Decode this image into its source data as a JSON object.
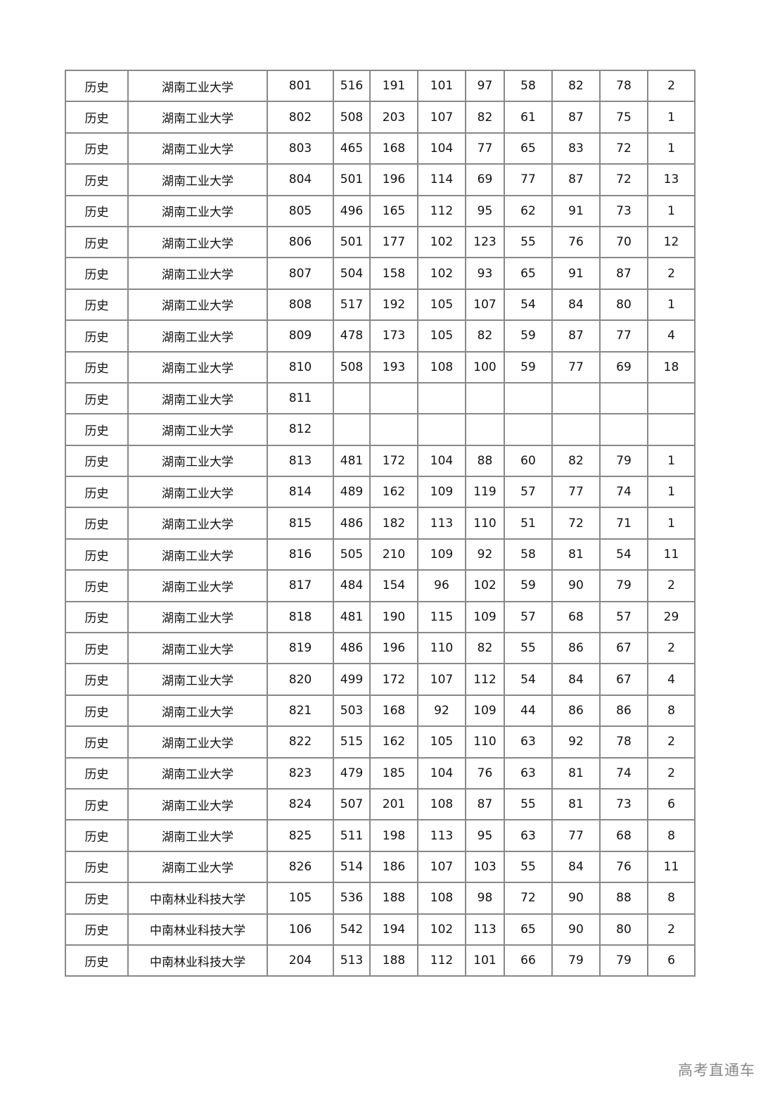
{
  "table": {
    "rows": [
      [
        "历史",
        "湖南工业大学",
        "801",
        "516",
        "191",
        "101",
        "97",
        "58",
        "82",
        "78",
        "2"
      ],
      [
        "历史",
        "湖南工业大学",
        "802",
        "508",
        "203",
        "107",
        "82",
        "61",
        "87",
        "75",
        "1"
      ],
      [
        "历史",
        "湖南工业大学",
        "803",
        "465",
        "168",
        "104",
        "77",
        "65",
        "83",
        "72",
        "1"
      ],
      [
        "历史",
        "湖南工业大学",
        "804",
        "501",
        "196",
        "114",
        "69",
        "77",
        "87",
        "72",
        "13"
      ],
      [
        "历史",
        "湖南工业大学",
        "805",
        "496",
        "165",
        "112",
        "95",
        "62",
        "91",
        "73",
        "1"
      ],
      [
        "历史",
        "湖南工业大学",
        "806",
        "501",
        "177",
        "102",
        "123",
        "55",
        "76",
        "70",
        "12"
      ],
      [
        "历史",
        "湖南工业大学",
        "807",
        "504",
        "158",
        "102",
        "93",
        "65",
        "91",
        "87",
        "2"
      ],
      [
        "历史",
        "湖南工业大学",
        "808",
        "517",
        "192",
        "105",
        "107",
        "54",
        "84",
        "80",
        "1"
      ],
      [
        "历史",
        "湖南工业大学",
        "809",
        "478",
        "173",
        "105",
        "82",
        "59",
        "87",
        "77",
        "4"
      ],
      [
        "历史",
        "湖南工业大学",
        "810",
        "508",
        "193",
        "108",
        "100",
        "59",
        "77",
        "69",
        "18"
      ],
      [
        "历史",
        "湖南工业大学",
        "811",
        "",
        "",
        "",
        "",
        "",
        "",
        "",
        ""
      ],
      [
        "历史",
        "湖南工业大学",
        "812",
        "",
        "",
        "",
        "",
        "",
        "",
        "",
        ""
      ],
      [
        "历史",
        "湖南工业大学",
        "813",
        "481",
        "172",
        "104",
        "88",
        "60",
        "82",
        "79",
        "1"
      ],
      [
        "历史",
        "湖南工业大学",
        "814",
        "489",
        "162",
        "109",
        "119",
        "57",
        "77",
        "74",
        "1"
      ],
      [
        "历史",
        "湖南工业大学",
        "815",
        "486",
        "182",
        "113",
        "110",
        "51",
        "72",
        "71",
        "1"
      ],
      [
        "历史",
        "湖南工业大学",
        "816",
        "505",
        "210",
        "109",
        "92",
        "58",
        "81",
        "54",
        "11"
      ],
      [
        "历史",
        "湖南工业大学",
        "817",
        "484",
        "154",
        "96",
        "102",
        "59",
        "90",
        "79",
        "2"
      ],
      [
        "历史",
        "湖南工业大学",
        "818",
        "481",
        "190",
        "115",
        "109",
        "57",
        "68",
        "57",
        "29"
      ],
      [
        "历史",
        "湖南工业大学",
        "819",
        "486",
        "196",
        "110",
        "82",
        "55",
        "86",
        "67",
        "2"
      ],
      [
        "历史",
        "湖南工业大学",
        "820",
        "499",
        "172",
        "107",
        "112",
        "54",
        "84",
        "67",
        "4"
      ],
      [
        "历史",
        "湖南工业大学",
        "821",
        "503",
        "168",
        "92",
        "109",
        "44",
        "86",
        "86",
        "8"
      ],
      [
        "历史",
        "湖南工业大学",
        "822",
        "515",
        "162",
        "105",
        "110",
        "63",
        "92",
        "78",
        "2"
      ],
      [
        "历史",
        "湖南工业大学",
        "823",
        "479",
        "185",
        "104",
        "76",
        "63",
        "81",
        "74",
        "2"
      ],
      [
        "历史",
        "湖南工业大学",
        "824",
        "507",
        "201",
        "108",
        "87",
        "55",
        "81",
        "73",
        "6"
      ],
      [
        "历史",
        "湖南工业大学",
        "825",
        "511",
        "198",
        "113",
        "95",
        "63",
        "77",
        "68",
        "8"
      ],
      [
        "历史",
        "湖南工业大学",
        "826",
        "514",
        "186",
        "107",
        "103",
        "55",
        "84",
        "76",
        "11"
      ],
      [
        "历史",
        "中南林业科技大学",
        "105",
        "536",
        "188",
        "108",
        "98",
        "72",
        "90",
        "88",
        "8"
      ],
      [
        "历史",
        "中南林业科技大学",
        "106",
        "542",
        "194",
        "102",
        "113",
        "65",
        "90",
        "80",
        "2"
      ],
      [
        "历史",
        "中南林业科技大学",
        "204",
        "513",
        "188",
        "112",
        "101",
        "66",
        "79",
        "79",
        "6"
      ]
    ]
  },
  "watermark": "高考直通车",
  "colors": {
    "border": "#888888",
    "text": "#111111",
    "watermark": "#888888"
  }
}
